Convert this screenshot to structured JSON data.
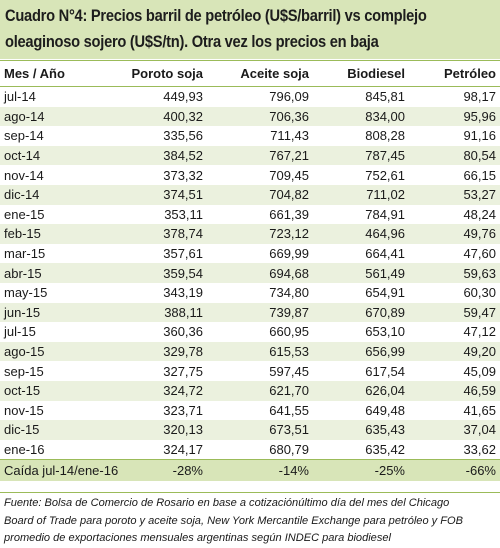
{
  "title": {
    "line1": "Cuadro N°4: Precios barril de petróleo (U$S/barril) vs complejo",
    "line2": "oleaginoso sojero (U$S/tn). Otra vez los precios en baja"
  },
  "table": {
    "headers": [
      "Mes / Año",
      "Poroto soja",
      "Aceite soja",
      "Biodiesel",
      "Petróleo"
    ],
    "rows": [
      [
        "jul-14",
        "449,93",
        "796,09",
        "845,81",
        "98,17"
      ],
      [
        "ago-14",
        "400,32",
        "706,36",
        "834,00",
        "95,96"
      ],
      [
        "sep-14",
        "335,56",
        "711,43",
        "808,28",
        "91,16"
      ],
      [
        "oct-14",
        "384,52",
        "767,21",
        "787,45",
        "80,54"
      ],
      [
        "nov-14",
        "373,32",
        "709,45",
        "752,61",
        "66,15"
      ],
      [
        "dic-14",
        "374,51",
        "704,82",
        "711,02",
        "53,27"
      ],
      [
        "ene-15",
        "353,11",
        "661,39",
        "784,91",
        "48,24"
      ],
      [
        "feb-15",
        "378,74",
        "723,12",
        "464,96",
        "49,76"
      ],
      [
        "mar-15",
        "357,61",
        "669,99",
        "664,41",
        "47,60"
      ],
      [
        "abr-15",
        "359,54",
        "694,68",
        "561,49",
        "59,63"
      ],
      [
        "may-15",
        "343,19",
        "734,80",
        "654,91",
        "60,30"
      ],
      [
        "jun-15",
        "388,11",
        "739,87",
        "670,89",
        "59,47"
      ],
      [
        "jul-15",
        "360,36",
        "660,95",
        "653,10",
        "47,12"
      ],
      [
        "ago-15",
        "329,78",
        "615,53",
        "656,99",
        "49,20"
      ],
      [
        "sep-15",
        "327,75",
        "597,45",
        "617,54",
        "45,09"
      ],
      [
        "oct-15",
        "324,72",
        "621,70",
        "626,04",
        "46,59"
      ],
      [
        "nov-15",
        "323,71",
        "641,55",
        "649,48",
        "41,65"
      ],
      [
        "dic-15",
        "320,13",
        "673,51",
        "635,43",
        "37,04"
      ],
      [
        "ene-16",
        "324,17",
        "680,79",
        "635,42",
        "33,62"
      ]
    ],
    "summary": [
      "Caída jul-14/ene-16",
      "-28%",
      "-14%",
      "-25%",
      "-66%"
    ]
  },
  "footnote": {
    "line1": "Fuente: Bolsa de Comercio de Rosario en base a cotizaciónúltimo día del mes del Chicago",
    "line2": "Board of Trade para poroto y aceite soja, New York Mercantile Exchange para petróleo y FOB",
    "line3": "promedio de exportaciones mensuales argentinas según INDEC para biodiesel"
  },
  "colors": {
    "title_background": "#d8e5b8",
    "row_shading": "#ebf1de",
    "rule_green": "#9bbb59"
  }
}
